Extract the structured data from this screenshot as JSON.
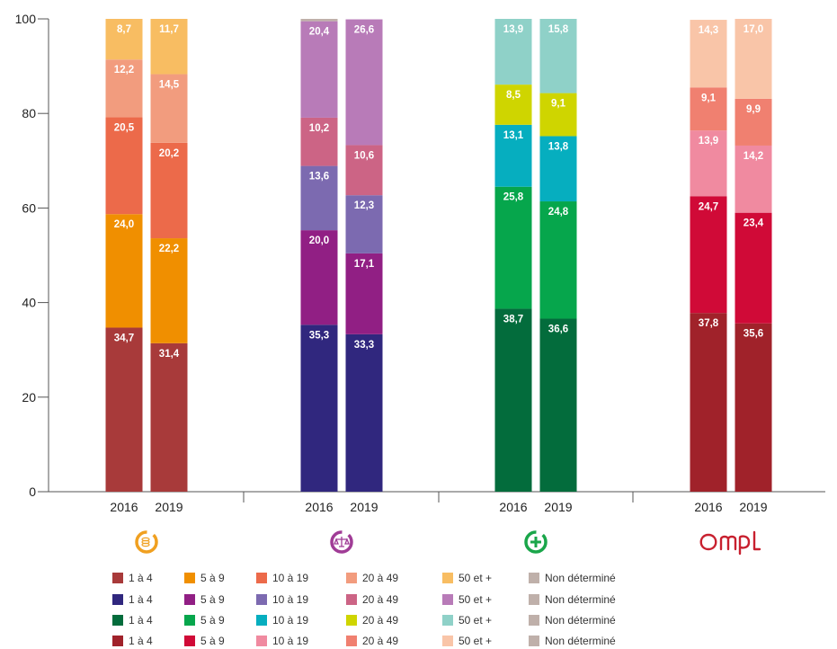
{
  "chart_data": {
    "type": "bar",
    "stacked": true,
    "ylim": [
      0,
      100
    ],
    "yticks": [
      0,
      20,
      40,
      60,
      80,
      100
    ],
    "year_labels": [
      "2016",
      "2019"
    ],
    "groups": [
      {
        "icon": "coins-icon",
        "icon_color": "#f0a020",
        "segments": [
          "1 à 4",
          "5 à 9",
          "10 à 19",
          "20 à 49",
          "50 et +",
          "Non déterminé"
        ],
        "colors": [
          "#a83a3a",
          "#f08f00",
          "#ec6a4a",
          "#f29c7e",
          "#f8bd62",
          "#bfb0aa"
        ],
        "values": {
          "2016": [
            34.7,
            24.0,
            20.5,
            12.2,
            8.7,
            0
          ],
          "2019": [
            31.4,
            22.2,
            20.2,
            14.5,
            11.7,
            0
          ]
        },
        "labels": {
          "2016": [
            "34,7",
            "24,0",
            "20,5",
            "12,2",
            "8,7",
            ""
          ],
          "2019": [
            "31,4",
            "22,2",
            "20,2",
            "14,5",
            "11,7",
            ""
          ]
        }
      },
      {
        "icon": "scales-icon",
        "icon_color": "#a03c96",
        "segments": [
          "1 à 4",
          "5 à 9",
          "10 à 19",
          "20 à 49",
          "50 et +",
          "Non déterminé"
        ],
        "colors": [
          "#30277e",
          "#911f84",
          "#7c6ab0",
          "#cc6485",
          "#b87bb8",
          "#bfb0aa"
        ],
        "values": {
          "2016": [
            35.3,
            20.0,
            13.6,
            10.2,
            20.4,
            0.5
          ],
          "2019": [
            33.3,
            17.1,
            12.3,
            10.6,
            26.6,
            0
          ]
        },
        "labels": {
          "2016": [
            "35,3",
            "20,0",
            "13,6",
            "10,2",
            "20,4",
            "0,5"
          ],
          "2019": [
            "33,3",
            "17,1",
            "12,3",
            "10,6",
            "26,6",
            ""
          ]
        }
      },
      {
        "icon": "plus-icon",
        "icon_color": "#1aa64a",
        "segments": [
          "1 à 4",
          "5 à 9",
          "10 à 19",
          "20 à 49",
          "50 et +",
          "Non déterminé"
        ],
        "colors": [
          "#036c3c",
          "#06a64c",
          "#06aebf",
          "#cfd500",
          "#8fd1c8",
          "#bfb0aa"
        ],
        "values": {
          "2016": [
            38.7,
            25.8,
            13.1,
            8.5,
            13.9,
            0
          ],
          "2019": [
            36.6,
            24.8,
            13.8,
            9.1,
            15.8,
            0
          ]
        },
        "labels": {
          "2016": [
            "38,7",
            "25,8",
            "13,1",
            "8,5",
            "13,9",
            ""
          ],
          "2019": [
            "36,6",
            "24,8",
            "13,8",
            "9,1",
            "15,8",
            ""
          ]
        }
      },
      {
        "logo_text": "Ompl",
        "icon_color": "#c8202f",
        "segments": [
          "1 à 4",
          "5 à 9",
          "10 à 19",
          "20 à 49",
          "50 et +",
          "Non déterminé"
        ],
        "colors": [
          "#a0222a",
          "#d00a37",
          "#f08aa0",
          "#f08070",
          "#f9c5a8",
          "#bfb0aa"
        ],
        "values": {
          "2016": [
            37.8,
            24.7,
            13.9,
            9.1,
            14.3,
            0
          ],
          "2019": [
            35.6,
            23.4,
            14.2,
            9.9,
            17.0,
            0
          ]
        },
        "labels": {
          "2016": [
            "37,8",
            "24,7",
            "13,9",
            "9,1",
            "14,3",
            ""
          ],
          "2019": [
            "35,6",
            "23,4",
            "14,2",
            "9,9",
            "17,0",
            ""
          ]
        }
      }
    ]
  }
}
